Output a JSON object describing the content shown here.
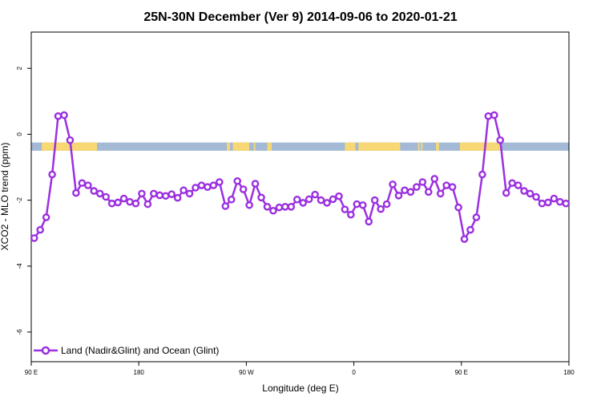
{
  "chart_data": {
    "type": "line",
    "title": "25N-30N December (Ver 9)   2014-09-06 to 2020-01-21",
    "xlabel": "Longitude (deg E)",
    "ylabel": "XCO2 - MLO trend (ppm)",
    "xlim": [
      90,
      450
    ],
    "ylim": [
      -6.9,
      3.1
    ],
    "x_ticks": [
      90,
      162,
      234,
      306,
      378,
      450
    ],
    "x_tick_labels": [
      "90 E",
      "180",
      "90 W",
      "0",
      "90 E",
      "180"
    ],
    "y_ticks": [
      2,
      0,
      -2,
      -4,
      -6
    ],
    "y_tick_labels": [
      "2",
      "0",
      "-2",
      "-4",
      "-6"
    ],
    "grid": false,
    "legend_position": "bottom-left",
    "line_color": "#9b30e0",
    "land_band": {
      "y_range": [
        -0.5,
        -0.25
      ],
      "ocean_color": "#a3b9d6",
      "land_color": "#f7d875",
      "land_segments": [
        [
          97,
          134
        ],
        [
          221,
          223
        ],
        [
          225,
          236
        ],
        [
          239,
          240
        ],
        [
          248,
          251
        ],
        [
          300,
          307
        ],
        [
          309,
          332
        ],
        [
          332,
          337
        ],
        [
          349,
          350
        ],
        [
          351,
          352
        ],
        [
          361,
          363
        ],
        [
          377,
          404
        ]
      ]
    },
    "series": [
      {
        "name": "Land (Nadir&Glint) and Ocean (Glint)",
        "x": [
          92,
          96,
          100,
          104,
          108,
          112,
          116,
          120,
          124,
          128,
          132,
          136,
          140,
          144,
          148,
          152,
          156,
          160,
          164,
          168,
          172,
          176,
          180,
          184,
          188,
          192,
          196,
          200,
          204,
          208,
          212,
          216,
          220,
          224,
          228,
          232,
          236,
          240,
          244,
          248,
          252,
          256,
          260,
          264,
          268,
          272,
          276,
          280,
          284,
          288,
          292,
          296,
          300,
          304,
          308,
          312,
          316,
          320,
          324,
          328,
          332,
          336,
          340,
          344,
          348,
          352,
          356,
          360,
          364,
          368,
          372,
          376,
          380,
          384,
          388,
          392,
          396,
          400,
          404,
          408,
          412,
          416,
          420,
          424,
          428,
          432,
          436,
          440,
          444,
          448
        ],
        "values": [
          -3.15,
          -2.9,
          -2.52,
          -1.22,
          0.55,
          0.58,
          -0.18,
          -1.78,
          -1.48,
          -1.55,
          -1.72,
          -1.8,
          -1.9,
          -2.1,
          -2.07,
          -1.95,
          -2.05,
          -2.1,
          -1.8,
          -2.12,
          -1.8,
          -1.85,
          -1.87,
          -1.82,
          -1.93,
          -1.7,
          -1.8,
          -1.62,
          -1.55,
          -1.6,
          -1.55,
          -1.45,
          -2.18,
          -1.98,
          -1.42,
          -1.67,
          -2.15,
          -1.5,
          -1.92,
          -2.2,
          -2.32,
          -2.22,
          -2.2,
          -2.2,
          -1.98,
          -2.08,
          -1.97,
          -1.83,
          -2.0,
          -2.08,
          -1.97,
          -1.88,
          -2.28,
          -2.44,
          -2.12,
          -2.15,
          -2.65,
          -2.0,
          -2.27,
          -2.12,
          -1.52,
          -1.86,
          -1.7,
          -1.75,
          -1.6,
          -1.45,
          -1.75,
          -1.35,
          -1.8,
          -1.55,
          -1.6,
          -2.22,
          -3.18,
          -2.9,
          -2.52,
          -1.22,
          0.55,
          0.58,
          -0.18,
          -1.78,
          -1.48,
          -1.55,
          -1.72,
          -1.8,
          -1.9,
          -2.1,
          -2.07,
          -1.95,
          -2.05,
          -2.1
        ]
      }
    ]
  }
}
